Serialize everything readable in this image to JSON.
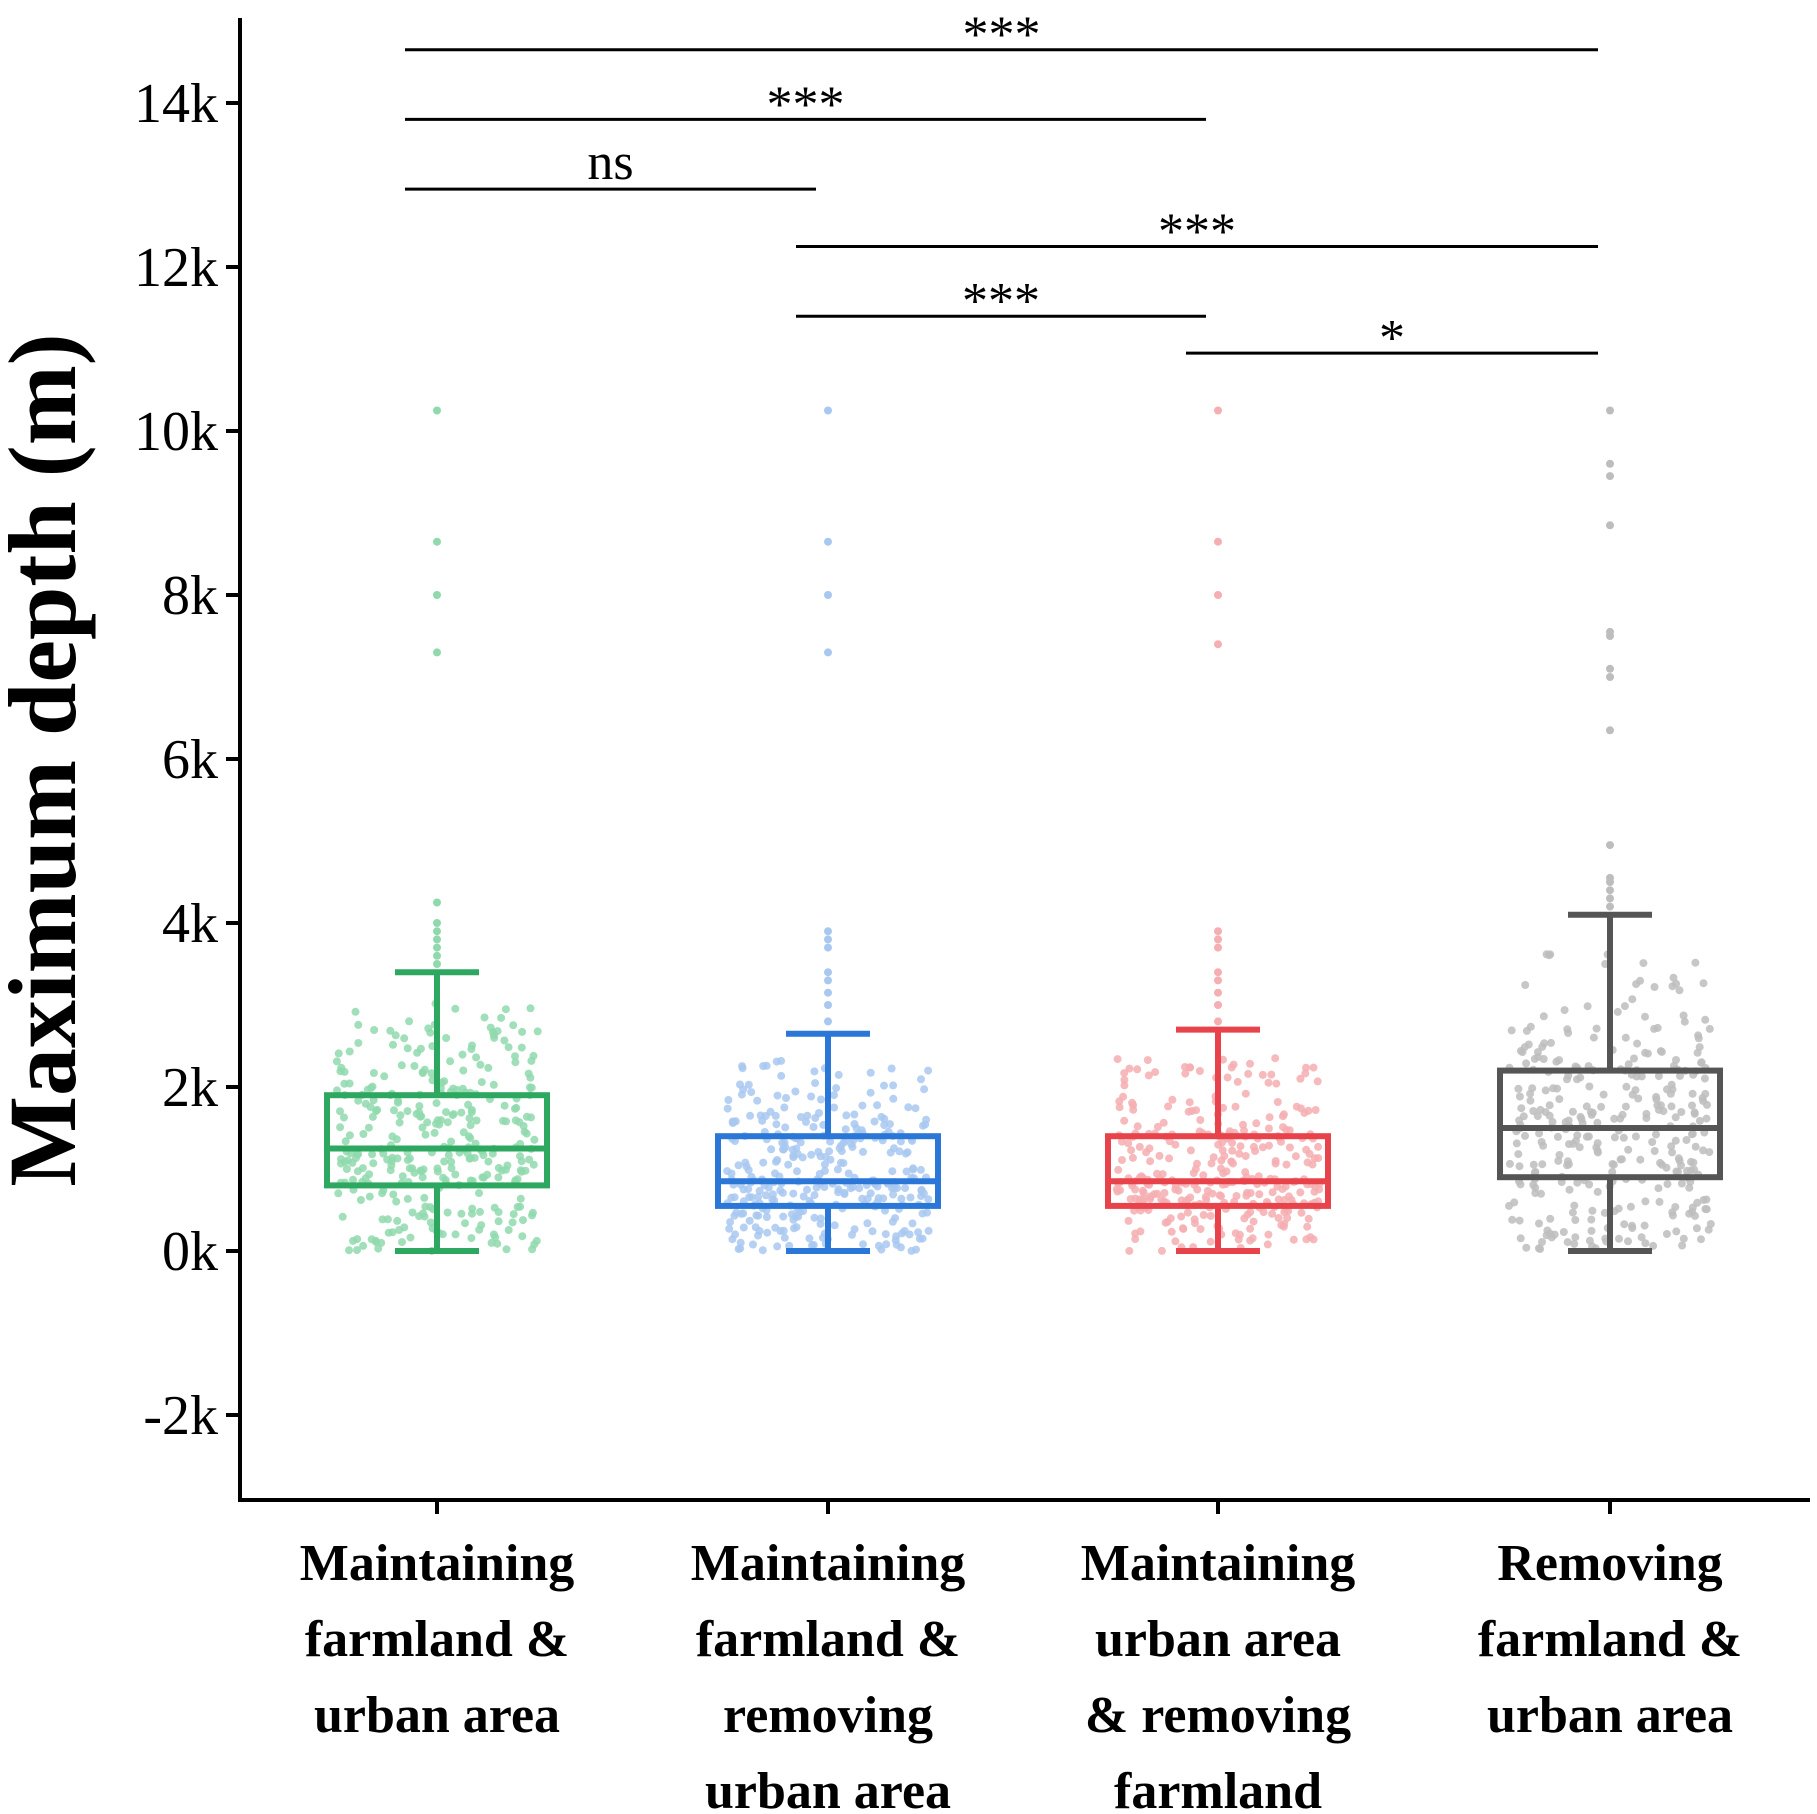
{
  "chart_data": {
    "type": "box",
    "title": "",
    "xlabel": "",
    "ylabel": "Maximum depth (m)",
    "ylim": [
      -3000,
      15000
    ],
    "yticks": [
      -2000,
      0,
      2000,
      4000,
      6000,
      8000,
      10000,
      12000,
      14000
    ],
    "ytick_labels": [
      "-2k",
      "0k",
      "2k",
      "4k",
      "6k",
      "8k",
      "10k",
      "12k",
      "14k"
    ],
    "grid": false,
    "legend": "none",
    "categories": [
      [
        "Maintaining",
        "farmland &",
        "urban area"
      ],
      [
        "Maintaining",
        "farmland &",
        "removing",
        "urban area"
      ],
      [
        "Maintaining",
        "urban area",
        "& removing",
        "farmland"
      ],
      [
        "Removing",
        "farmland &",
        "urban area"
      ]
    ],
    "boxes": [
      {
        "color": "#2ea860",
        "point_color": "#8fd9ad",
        "whisker_low": 0,
        "q1": 800,
        "median": 1250,
        "q3": 1900,
        "whisker_high": 3400,
        "outliers": [
          3500,
          3600,
          3700,
          3800,
          3900,
          4000,
          4250,
          7300,
          8000,
          8650,
          10250
        ]
      },
      {
        "color": "#2a77d8",
        "point_color": "#a8c8f0",
        "whisker_low": 0,
        "q1": 550,
        "median": 850,
        "q3": 1400,
        "whisker_high": 2650,
        "outliers": [
          2800,
          3000,
          3150,
          3300,
          3400,
          3700,
          3800,
          3900,
          7300,
          8000,
          8650,
          10250
        ]
      },
      {
        "color": "#e8434a",
        "point_color": "#f5aeb1",
        "whisker_low": 0,
        "q1": 550,
        "median": 850,
        "q3": 1400,
        "whisker_high": 2700,
        "outliers": [
          2800,
          3000,
          3150,
          3300,
          3400,
          3700,
          3800,
          3900,
          7400,
          8000,
          8650,
          10250
        ]
      },
      {
        "color": "#555555",
        "point_color": "#bdbdbd",
        "whisker_low": 0,
        "q1": 900,
        "median": 1500,
        "q3": 2200,
        "whisker_high": 4100,
        "outliers": [
          4200,
          4300,
          4400,
          4500,
          4550,
          4950,
          6350,
          7000,
          7100,
          7500,
          7550,
          8850,
          9450,
          9600,
          10250
        ]
      }
    ],
    "comparisons": [
      {
        "from": 0,
        "to": 3,
        "y": 14650,
        "label": "***"
      },
      {
        "from": 0,
        "to": 2,
        "y": 13800,
        "label": "***"
      },
      {
        "from": 0,
        "to": 1,
        "y": 12950,
        "label": "ns"
      },
      {
        "from": 1,
        "to": 3,
        "y": 12250,
        "label": "***"
      },
      {
        "from": 1,
        "to": 2,
        "y": 11400,
        "label": "***"
      },
      {
        "from": 2,
        "to": 3,
        "y": 10950,
        "label": "*"
      }
    ]
  }
}
